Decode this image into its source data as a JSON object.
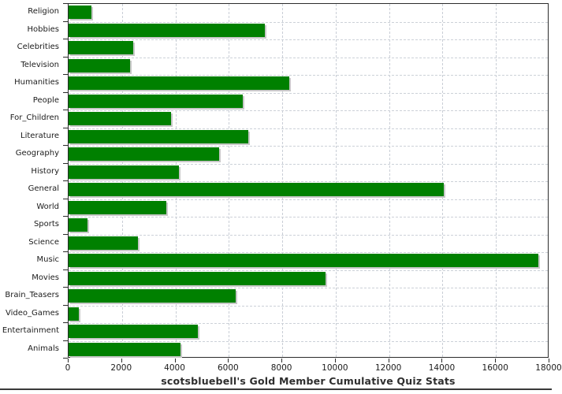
{
  "title": "scotsbluebell's Gold Member Cumulative Quiz Stats",
  "chart_data": {
    "type": "bar",
    "orientation": "horizontal",
    "title": "scotsbluebell's Gold Member Cumulative Quiz Stats",
    "categories": [
      "Religion",
      "Hobbies",
      "Celebrities",
      "Television",
      "Humanities",
      "People",
      "For_Children",
      "Literature",
      "Geography",
      "History",
      "General",
      "World",
      "Sports",
      "Science",
      "Music",
      "Movies",
      "Brain_Teasers",
      "Video_Games",
      "Entertainment",
      "Animals"
    ],
    "values": [
      870,
      7350,
      2410,
      2310,
      8250,
      6520,
      3840,
      6740,
      5630,
      4130,
      14050,
      3670,
      720,
      2610,
      17590,
      9620,
      6250,
      370,
      4830,
      4200
    ],
    "xlim": [
      0,
      18000
    ],
    "x_ticks": [
      0,
      2000,
      4000,
      6000,
      8000,
      10000,
      12000,
      14000,
      16000,
      18000
    ],
    "xlabel": "",
    "ylabel": "",
    "grid": true,
    "legend": "none",
    "bar_color": "#008000",
    "bar_shadow_color": "#c8c8c8",
    "grid_color": "#c9ced6",
    "axis_color": "#2b2b2b",
    "text_color": "#1c1c1c",
    "background_color": "#ffffff"
  }
}
